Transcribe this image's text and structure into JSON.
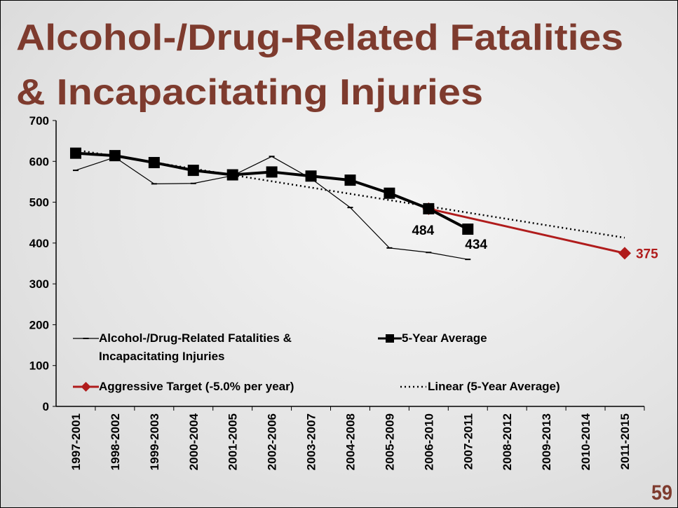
{
  "chart_data": {
    "type": "line",
    "title": [
      "Alcohol-/Drug-Related Fatalities",
      "& Incapacitating Injuries"
    ],
    "page_number": "59",
    "categories": [
      "1997-2001",
      "1998-2002",
      "1999-2003",
      "2000-2004",
      "2001-2005",
      "2002-2006",
      "2003-2007",
      "2004-2008",
      "2005-2009",
      "2006-2010",
      "2007-2011",
      "2008-2012",
      "2009-2013",
      "2010-2014",
      "2011-2015"
    ],
    "ylim": [
      0,
      700
    ],
    "yticks": [
      0,
      100,
      200,
      300,
      400,
      500,
      600,
      700
    ],
    "grid": false,
    "legend": "inside-bottom-left",
    "series": [
      {
        "name": "Alcohol-/Drug-Related Fatalities & Incapacitating Injuries",
        "color": "#000000",
        "width": 1.2,
        "marker": "dash",
        "values": [
          578,
          610,
          545,
          546,
          565,
          612,
          558,
          487,
          388,
          377,
          360,
          null,
          null,
          null,
          null
        ]
      },
      {
        "name": "5-Year Average",
        "color": "#000000",
        "width": 4,
        "marker": "square",
        "values": [
          620,
          614,
          597,
          578,
          567,
          574,
          564,
          554,
          522,
          484,
          434,
          null,
          null,
          null,
          null
        ],
        "value_labels": [
          null,
          null,
          null,
          null,
          null,
          null,
          null,
          null,
          null,
          "484",
          "434",
          null,
          null,
          null,
          null
        ]
      },
      {
        "name": "Aggressive Target (-5.0% per year)",
        "color": "#b01c1c",
        "width": 3,
        "marker": "diamond",
        "connect_gaps": true,
        "values": [
          null,
          null,
          null,
          null,
          null,
          null,
          null,
          null,
          null,
          484,
          null,
          null,
          null,
          null,
          375
        ],
        "value_labels": [
          null,
          null,
          null,
          null,
          null,
          null,
          null,
          null,
          null,
          null,
          null,
          null,
          null,
          null,
          "375"
        ]
      },
      {
        "name": "Linear (5-Year Average)",
        "color": "#000000",
        "width": 2.5,
        "dash": "2 4",
        "marker": "none",
        "connect_gaps": true,
        "values": [
          628,
          null,
          null,
          null,
          null,
          null,
          null,
          null,
          null,
          null,
          null,
          null,
          null,
          null,
          413
        ]
      }
    ]
  }
}
